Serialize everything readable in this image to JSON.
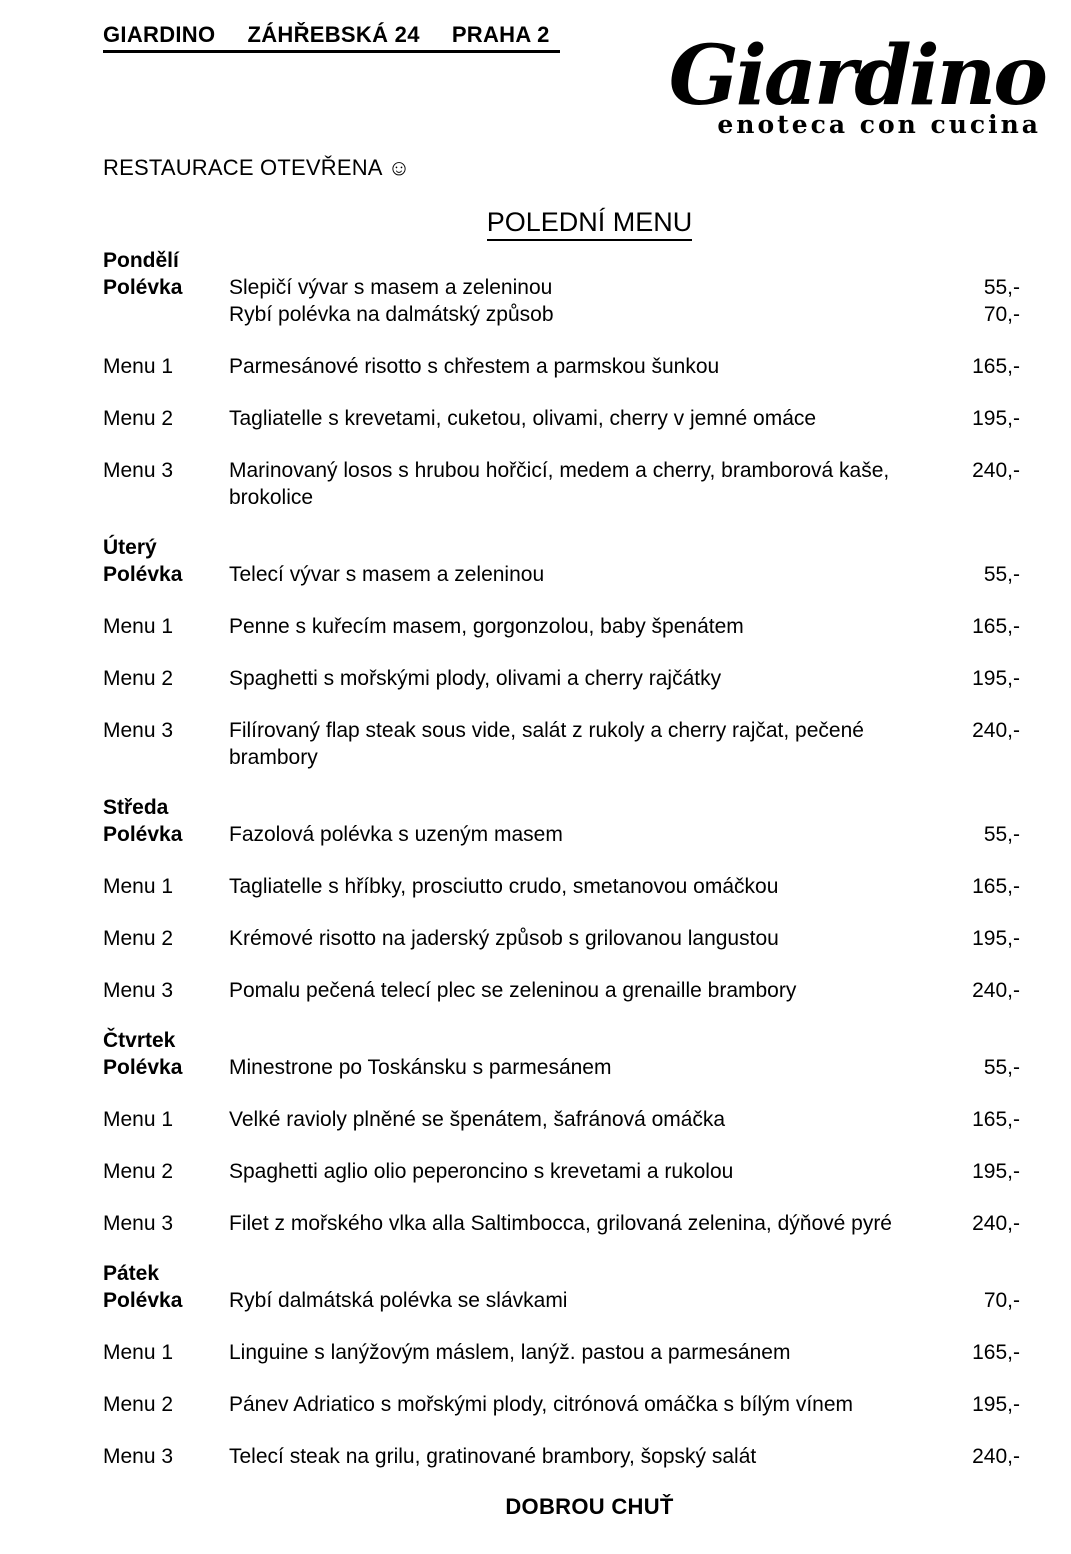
{
  "page": {
    "header_line": "GIARDINO     ZÁHŘEBSKÁ 24     PRAHA 2",
    "logo": {
      "name": "Giardino",
      "tagline": "enoteca con cucina"
    },
    "status": {
      "text": "RESTAURACE OTEVŘENA",
      "smiley": "☺"
    },
    "title": "POLEDNÍ MENU",
    "footer": "DOBROU CHUŤ"
  },
  "menu": {
    "days": [
      {
        "name": "Pondělí",
        "rows": [
          {
            "label": "Polévka",
            "text": "Slepičí vývar s masem a zeleninou",
            "price": "55,-"
          },
          {
            "label": "",
            "text": "Rybí polévka na dalmátský způsob",
            "price": "70,-"
          },
          {
            "label": "Menu 1",
            "text": "Parmesánové risotto s chřestem a parmskou šunkou",
            "price": "165,-"
          },
          {
            "label": "Menu 2",
            "text": "Tagliatelle s krevetami, cuketou, olivami, cherry v jemné omáce",
            "price": "195,-"
          },
          {
            "label": "Menu 3",
            "text": "Marinovaný losos s hrubou hořčicí, medem a cherry, bramborová kaše, brokolice",
            "price": "240,-"
          }
        ]
      },
      {
        "name": "Úterý",
        "rows": [
          {
            "label": "Polévka",
            "text": "Telecí vývar s masem a zeleninou",
            "price": "55,-"
          },
          {
            "label": "Menu 1",
            "text": "Penne s kuřecím masem, gorgonzolou, baby špenátem",
            "price": "165,-"
          },
          {
            "label": "Menu 2",
            "text": "Spaghetti s mořskými plody, olivami a cherry rajčátky",
            "price": "195,-"
          },
          {
            "label": "Menu 3",
            "text": "Filírovaný flap steak sous vide, salát z rukoly a cherry rajčat, pečené brambory",
            "price": "240,-"
          }
        ]
      },
      {
        "name": "Středa",
        "rows": [
          {
            "label": "Polévka",
            "text": "Fazolová polévka s uzeným masem",
            "price": "55,-"
          },
          {
            "label": "Menu 1",
            "text": "Tagliatelle s hříbky, prosciutto crudo, smetanovou omáčkou",
            "price": "165,-"
          },
          {
            "label": "Menu 2",
            "text": "Krémové risotto na jaderský způsob s grilovanou langustou",
            "price": "195,-"
          },
          {
            "label": "Menu 3",
            "text": "Pomalu pečená telecí plec se zeleninou a grenaille brambory",
            "price": "240,-"
          }
        ]
      },
      {
        "name": "Čtvrtek",
        "rows": [
          {
            "label": "Polévka",
            "text": "Minestrone po Toskánsku s parmesánem",
            "price": "55,-"
          },
          {
            "label": "Menu 1",
            "text": "Velké ravioly plněné se špenátem, šafránová omáčka",
            "price": "165,-"
          },
          {
            "label": "Menu 2",
            "text": "Spaghetti aglio olio peperoncino s krevetami a rukolou",
            "price": "195,-"
          },
          {
            "label": "Menu 3",
            "text": "Filet z mořského vlka alla Saltimbocca, grilovaná zelenina, dýňové pyré",
            "price": "240,-"
          }
        ]
      },
      {
        "name": "Pátek",
        "rows": [
          {
            "label": "Polévka",
            "text": "Rybí dalmátská polévka se slávkami",
            "price": "70,-"
          },
          {
            "label": "Menu 1",
            "text": "Linguine s lanýžovým máslem, lanýž. pastou a parmesánem",
            "price": "165,-"
          },
          {
            "label": "Menu 2",
            "text": "Pánev Adriatico s mořskými plody, citrónová omáčka s bílým vínem",
            "price": "195,-"
          },
          {
            "label": "Menu 3",
            "text": "Telecí steak na grilu, gratinované brambory, šopský salát",
            "price": "240,-"
          }
        ]
      }
    ]
  }
}
